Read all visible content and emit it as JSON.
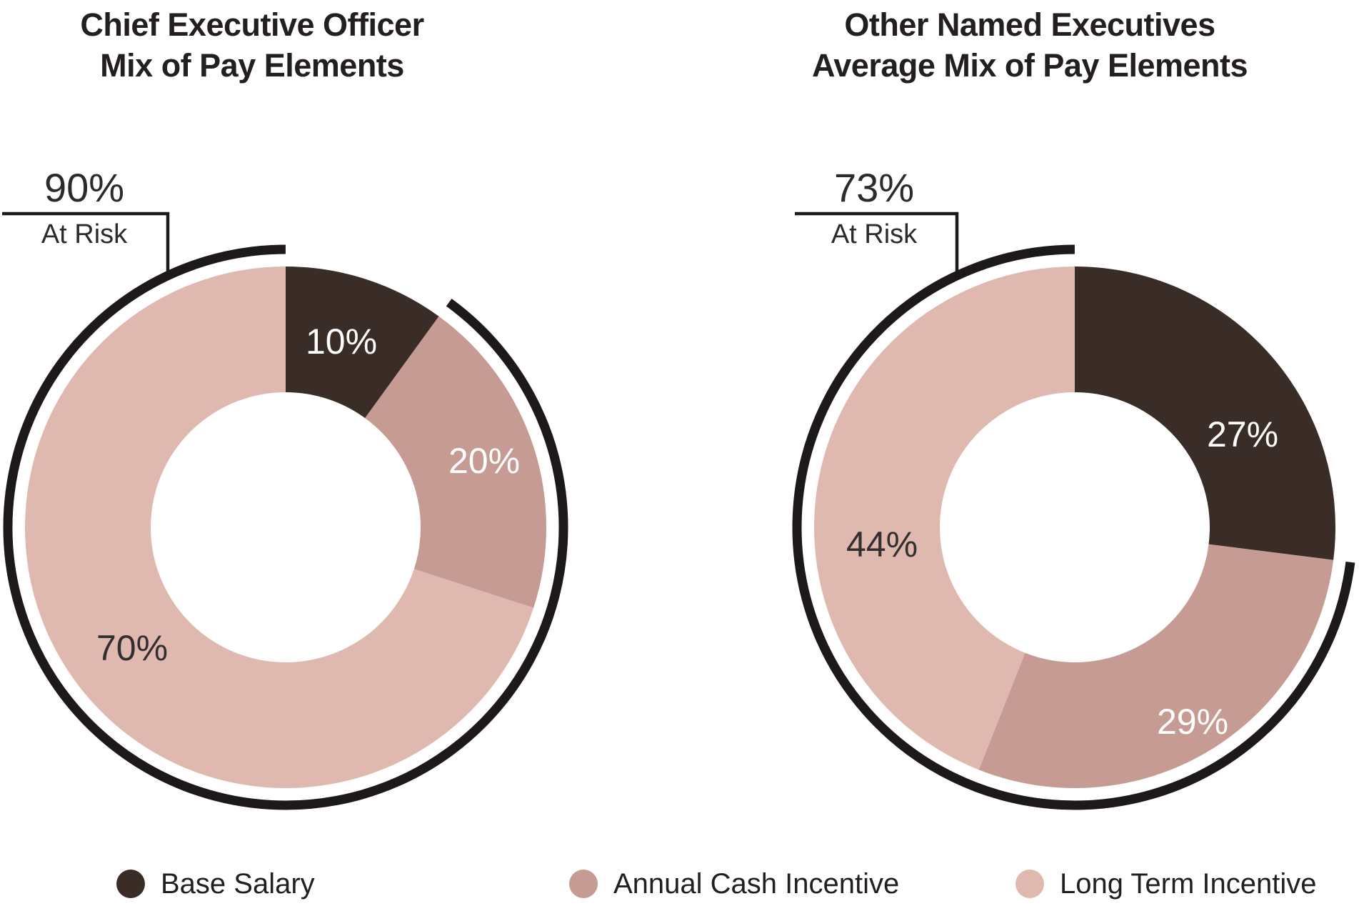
{
  "page": {
    "background": "#ffffff"
  },
  "colors": {
    "ink": "#1d1819",
    "title_text": "#231f20",
    "annotation_text": "#2e2a2b",
    "base_salary": "#3a2d27",
    "annual_cash_incentive": "#c69b94",
    "long_term_incentive": "#dfb8b0",
    "label_on_dark": "#ffffff",
    "label_on_light": "#332e2f"
  },
  "legend": {
    "position": "bottom",
    "items": [
      {
        "label": "Base Salary",
        "color": "#3a2d27"
      },
      {
        "label": "Annual Cash Incentive",
        "color": "#c69b94"
      },
      {
        "label": "Long Term Incentive",
        "color": "#dfb8b0"
      }
    ]
  },
  "chart_data": [
    {
      "type": "pie",
      "subtype": "donut",
      "title": "Chief Executive Officer Mix of Pay Elements",
      "title_line1": "Chief Executive Officer",
      "title_line2": "Mix of Pay Elements",
      "categories": [
        "Base Salary",
        "Annual Cash Incentive",
        "Long Term Incentive"
      ],
      "values": [
        10,
        20,
        70
      ],
      "slice_labels": [
        "10%",
        "20%",
        "70%"
      ],
      "slice_colors": [
        "#3a2d27",
        "#c69b94",
        "#dfb8b0"
      ],
      "slice_label_colors": [
        "#ffffff",
        "#ffffff",
        "#332e2f"
      ],
      "start_angle_deg": 0,
      "direction": "clockwise",
      "labels_position": "inside",
      "legend_position": "bottom",
      "annotation": {
        "label": "90%",
        "sublabel": "At Risk",
        "value": 90,
        "style": "outer black arc covering at-risk slices",
        "covers": [
          "Annual Cash Incentive",
          "Long Term Incentive"
        ]
      }
    },
    {
      "type": "pie",
      "subtype": "donut",
      "title": "Other Named Executives Average Mix of Pay Elements",
      "title_line1": "Other Named Executives",
      "title_line2": "Average Mix of Pay Elements",
      "categories": [
        "Base Salary",
        "Annual Cash Incentive",
        "Long Term Incentive"
      ],
      "values": [
        27,
        29,
        44
      ],
      "slice_labels": [
        "27%",
        "29%",
        "44%"
      ],
      "slice_colors": [
        "#3a2d27",
        "#c69b94",
        "#dfb8b0"
      ],
      "slice_label_colors": [
        "#ffffff",
        "#ffffff",
        "#332e2f"
      ],
      "start_angle_deg": 0,
      "direction": "clockwise",
      "labels_position": "inside",
      "legend_position": "bottom",
      "annotation": {
        "label": "73%",
        "sublabel": "At Risk",
        "value": 73,
        "style": "outer black arc covering at-risk slices",
        "covers": [
          "Annual Cash Incentive",
          "Long Term Incentive"
        ]
      }
    }
  ]
}
